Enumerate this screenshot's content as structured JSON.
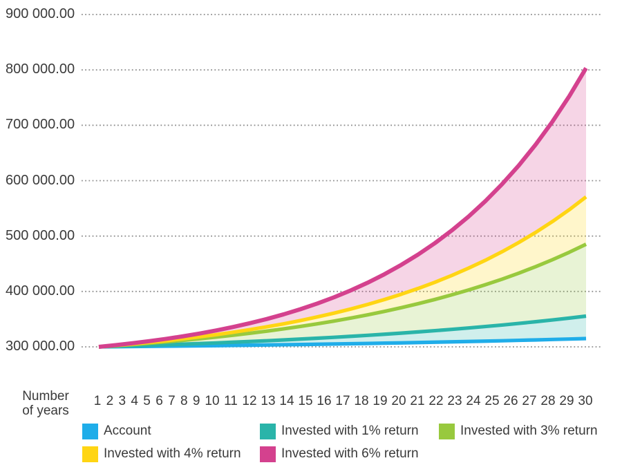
{
  "chart_data": {
    "type": "area",
    "title": "",
    "xlabel": "Number of years",
    "xlabel_lines": [
      "Number",
      "of years"
    ],
    "ylabel": "",
    "grid": "horizontal dotted",
    "legend_position": "bottom",
    "band_fill_opacity": 0.22,
    "grid_color": "#8f8f8f",
    "text_color": "#3a3a3a",
    "x": [
      1,
      2,
      3,
      4,
      5,
      6,
      7,
      8,
      9,
      10,
      11,
      12,
      13,
      14,
      15,
      16,
      17,
      18,
      19,
      20,
      21,
      22,
      23,
      24,
      25,
      26,
      27,
      28,
      29,
      30
    ],
    "y_axis": {
      "min": 300000,
      "max": 900000,
      "step": 100000,
      "ticks": [
        {
          "value": 300000,
          "label": "300 000.00"
        },
        {
          "value": 400000,
          "label": "400 000.00"
        },
        {
          "value": 500000,
          "label": "500 000.00"
        },
        {
          "value": 600000,
          "label": "600 000.00"
        },
        {
          "value": 700000,
          "label": "700 000.00"
        },
        {
          "value": 800000,
          "label": "800 000.00"
        },
        {
          "value": 900000,
          "label": "900 000.00"
        }
      ]
    },
    "series": [
      {
        "name": "Account",
        "color": "#1FADE9",
        "values": [
          300000,
          300300,
          300600,
          300900,
          301200,
          301500,
          301900,
          302200,
          302600,
          303000,
          303400,
          303800,
          304200,
          304700,
          305100,
          305600,
          306100,
          306700,
          307200,
          307800,
          308400,
          309000,
          309700,
          310300,
          311000,
          311800,
          312500,
          313300,
          314100,
          315000
        ]
      },
      {
        "name": "Invested with 1% return",
        "color": "#2AB4A9",
        "values": [
          300000,
          300900,
          301800,
          302800,
          303800,
          304800,
          305900,
          307100,
          308400,
          309700,
          311000,
          312500,
          314000,
          315600,
          317200,
          319000,
          320800,
          322800,
          324800,
          327000,
          329200,
          331600,
          334100,
          336700,
          339400,
          342300,
          345400,
          348600,
          351900,
          355500
        ]
      },
      {
        "name": "Invested with 3% return",
        "color": "#98C93E",
        "values": [
          300000,
          302000,
          304200,
          306500,
          309000,
          311700,
          314600,
          317700,
          321000,
          324600,
          328400,
          332500,
          336900,
          341600,
          346600,
          352000,
          357800,
          364000,
          370700,
          377900,
          385500,
          393800,
          402600,
          412100,
          422200,
          433100,
          444800,
          457300,
          470800,
          485200
        ]
      },
      {
        "name": "Invested with 4% return",
        "color": "#FFD513",
        "values": [
          300000,
          302500,
          305100,
          308000,
          311100,
          314500,
          318200,
          322100,
          326400,
          331100,
          336200,
          341600,
          347500,
          354000,
          360900,
          368400,
          376600,
          385400,
          395000,
          405400,
          416600,
          428800,
          442000,
          456200,
          471700,
          488500,
          506600,
          526300,
          547600,
          570700
        ]
      },
      {
        "name": "Invested with 6% return",
        "color": "#D4418E",
        "values": [
          300000,
          303100,
          306500,
          310300,
          314400,
          319000,
          324100,
          329700,
          335900,
          342800,
          350300,
          358700,
          368000,
          378200,
          389500,
          402000,
          415800,
          431100,
          448000,
          466600,
          487200,
          510000,
          535100,
          562900,
          593700,
          627600,
          665200,
          706700,
          752500,
          803200
        ]
      }
    ]
  }
}
